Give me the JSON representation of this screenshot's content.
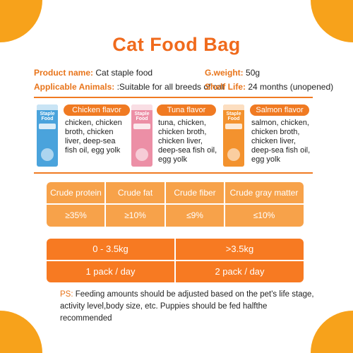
{
  "title": "Cat Food Bag",
  "info": {
    "product_name_label": "Product name:",
    "product_name_value": "Cat staple food",
    "weight_label": "G.weight:",
    "weight_value": "50g",
    "animals_label": "Applicable Animals:",
    "animals_value": ":Suitable for all breeds of cat",
    "shelf_label": "Shelf Life:",
    "shelf_value": "24 months (unopened)"
  },
  "products": [
    {
      "pack_name": "Staple Food",
      "pack_color": "#4aa3dc",
      "flavor": "Chicken flavor",
      "ingredients": [
        "chicken, chicken",
        "broth, chicken",
        "liver, deep-sea",
        "fish oil, egg yolk"
      ]
    },
    {
      "pack_name": "Staple Food",
      "pack_color": "#ec8fa6",
      "flavor": "Tuna flavor",
      "ingredients": [
        "tuna, chicken,",
        "chicken broth,",
        "chicken liver,",
        "deep-sea fish oil,",
        "egg yolk"
      ]
    },
    {
      "pack_name": "Staple Food",
      "pack_color": "#f3922e",
      "flavor": "Salmon flavor",
      "ingredients": [
        "salmon, chicken,",
        "chicken broth,",
        "chicken liver,",
        "deep-sea fish oil,",
        "egg yolk"
      ]
    }
  ],
  "nutrition": {
    "headers": [
      "Crude protein",
      "Crude fat",
      "Crude fiber",
      "Crude gray matter"
    ],
    "values": [
      "≥35%",
      "≥10%",
      "≤9%",
      "≤10%"
    ]
  },
  "feeding": {
    "weights": [
      "0 - 3.5kg",
      ">3.5kg"
    ],
    "amounts": [
      "1 pack / day",
      "2 pack / day"
    ]
  },
  "ps": {
    "label": "PS:",
    "text": "Feeding amounts should be adjusted based on the pet's life stage, activity level,body size, etc. Puppies should be fed halfthe recommended"
  },
  "colors": {
    "accent": "#f06a1c",
    "orange": "#f77a22",
    "light_orange": "#f7a24a",
    "corner": "#f7a21b"
  }
}
